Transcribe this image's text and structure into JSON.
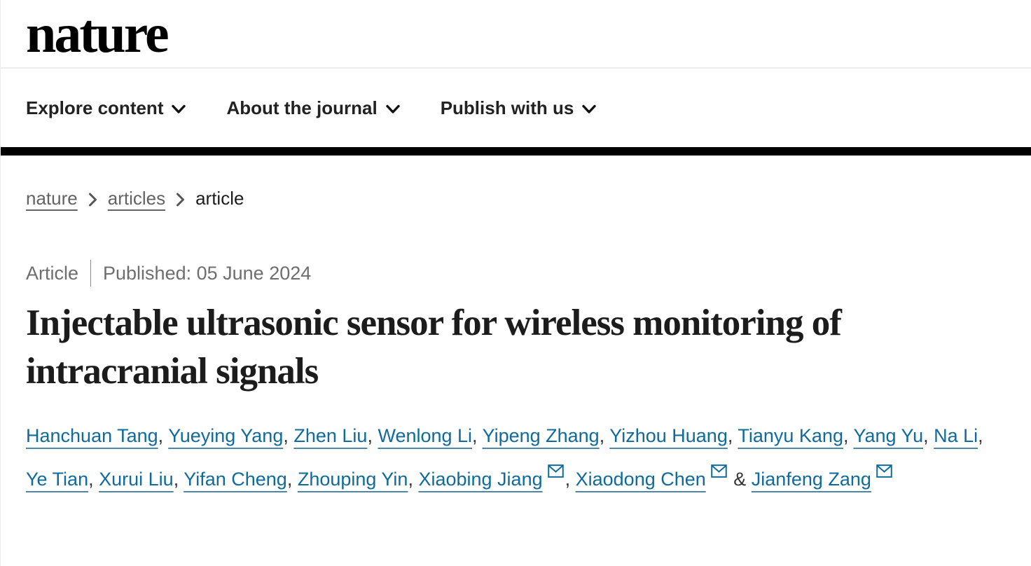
{
  "brand": {
    "logo_text": "nature"
  },
  "nav": {
    "items": [
      {
        "label": "Explore content"
      },
      {
        "label": "About the journal"
      },
      {
        "label": "Publish with us"
      }
    ]
  },
  "breadcrumb": {
    "items": [
      {
        "label": "nature",
        "link": true
      },
      {
        "label": "articles",
        "link": true
      },
      {
        "label": "article",
        "link": false
      }
    ]
  },
  "article_meta": {
    "type_label": "Article",
    "published_label": "Published: 05 June 2024"
  },
  "title": "Injectable ultrasonic sensor for wireless monitoring of intracranial signals",
  "authors": {
    "list": [
      {
        "name": "Hanchuan Tang",
        "email": false
      },
      {
        "name": "Yueying Yang",
        "email": false
      },
      {
        "name": "Zhen Liu",
        "email": false
      },
      {
        "name": "Wenlong Li",
        "email": false
      },
      {
        "name": "Yipeng Zhang",
        "email": false
      },
      {
        "name": "Yizhou Huang",
        "email": false
      },
      {
        "name": "Tianyu Kang",
        "email": false
      },
      {
        "name": "Yang Yu",
        "email": false
      },
      {
        "name": "Na Li",
        "email": false
      },
      {
        "name": "Ye Tian",
        "email": false
      },
      {
        "name": "Xurui Liu",
        "email": false
      },
      {
        "name": "Yifan Cheng",
        "email": false
      },
      {
        "name": "Zhouping Yin",
        "email": false
      },
      {
        "name": "Xiaobing Jiang",
        "email": true
      },
      {
        "name": "Xiaodong Chen",
        "email": true
      },
      {
        "name": "Jianfeng Zang",
        "email": true
      }
    ],
    "comma_separator": ",",
    "last_separator": "&"
  },
  "colors": {
    "link_blue": "#0f6b9d",
    "muted_gray": "#6e6e6e",
    "text_dark": "#1c1c1c",
    "bar_black": "#000000"
  }
}
